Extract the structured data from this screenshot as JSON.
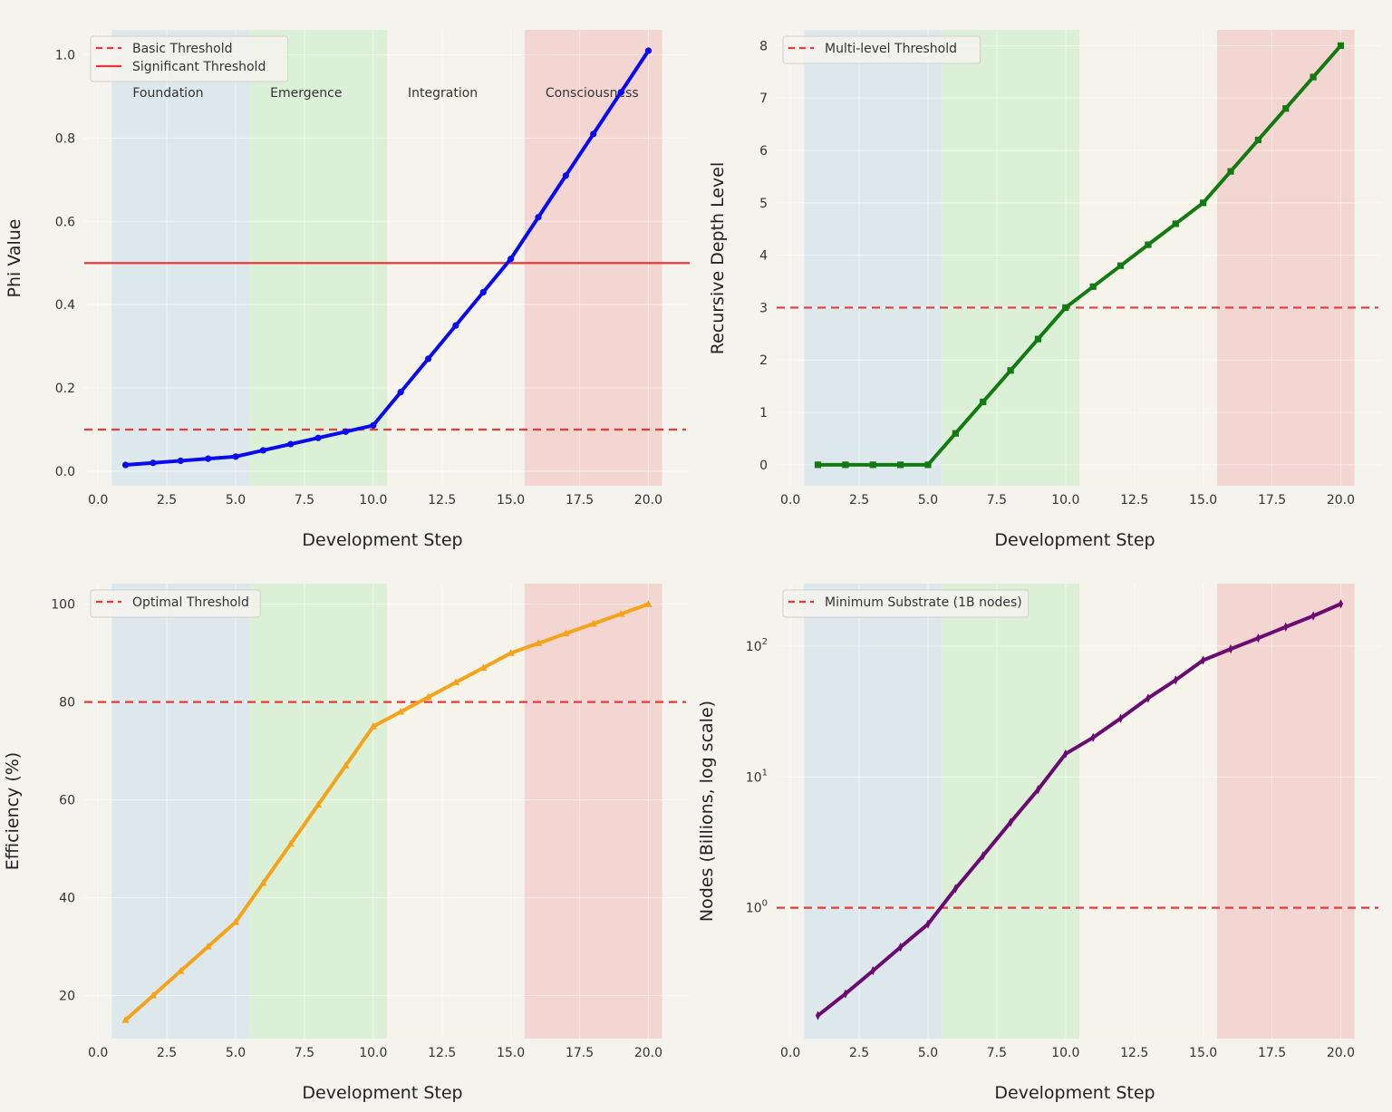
{
  "chart_data": [
    {
      "type": "line",
      "xlabel": "Development Step",
      "ylabel": "Phi Value",
      "xlim": [
        -0.5,
        21.5
      ],
      "ylim": [
        -0.035,
        1.06
      ],
      "yscale": "linear",
      "xticks": [
        "0.0",
        "2.5",
        "5.0",
        "7.5",
        "10.0",
        "12.5",
        "15.0",
        "17.5",
        "20.0"
      ],
      "yticks": [
        "0.0",
        "0.2",
        "0.4",
        "0.6",
        "0.8",
        "1.0"
      ],
      "legend_position": "top-left",
      "grid": true,
      "phases": [
        {
          "label": "Foundation",
          "start": 0.5,
          "end": 5.5,
          "color": "#dde8ec"
        },
        {
          "label": "Emergence",
          "start": 5.5,
          "end": 10.5,
          "color": "#dcf0d8"
        },
        {
          "label": "Integration",
          "start": 10.5,
          "end": 15.5,
          "color": "#f6f4ea"
        },
        {
          "label": "Consciousness",
          "start": 15.5,
          "end": 20.5,
          "color": "#f3d6d2"
        }
      ],
      "thresholds": [
        {
          "name": "Basic Threshold",
          "value": 0.1,
          "style": "dashed",
          "color": "#e83a3a"
        },
        {
          "name": "Significant Threshold",
          "value": 0.5,
          "style": "solid",
          "color": "#e83a3a"
        }
      ],
      "series": [
        {
          "color": "#0a0af0",
          "marker": "circle",
          "x": [
            1,
            2,
            3,
            4,
            5,
            6,
            7,
            8,
            9,
            10,
            11,
            12,
            13,
            14,
            15,
            16,
            17,
            18,
            19,
            20
          ],
          "values": [
            0.015,
            0.02,
            0.025,
            0.03,
            0.035,
            0.05,
            0.065,
            0.08,
            0.095,
            0.11,
            0.19,
            0.27,
            0.35,
            0.43,
            0.51,
            0.61,
            0.71,
            0.81,
            0.91,
            1.01
          ]
        }
      ]
    },
    {
      "type": "line",
      "xlabel": "Development Step",
      "ylabel": "Recursive Depth Level",
      "xlim": [
        -0.5,
        21.5
      ],
      "ylim": [
        -0.4,
        8.3
      ],
      "yscale": "linear",
      "xticks": [
        "0.0",
        "2.5",
        "5.0",
        "7.5",
        "10.0",
        "12.5",
        "15.0",
        "17.5",
        "20.0"
      ],
      "yticks": [
        "0",
        "1",
        "2",
        "3",
        "4",
        "5",
        "6",
        "7",
        "8"
      ],
      "legend_position": "top-left",
      "grid": true,
      "phases": [
        {
          "start": 0.5,
          "end": 5.5,
          "color": "#dde8ec"
        },
        {
          "start": 5.5,
          "end": 10.5,
          "color": "#dcf0d8"
        },
        {
          "start": 10.5,
          "end": 15.5,
          "color": "#f6f4ea"
        },
        {
          "start": 15.5,
          "end": 20.5,
          "color": "#f3d6d2"
        }
      ],
      "thresholds": [
        {
          "name": "Multi-level Threshold",
          "value": 3,
          "style": "dashed",
          "color": "#e83a3a"
        }
      ],
      "series": [
        {
          "color": "#117a11",
          "marker": "square",
          "x": [
            1,
            2,
            3,
            4,
            5,
            6,
            7,
            8,
            9,
            10,
            11,
            12,
            13,
            14,
            15,
            16,
            17,
            18,
            19,
            20
          ],
          "values": [
            0,
            0,
            0,
            0,
            0,
            0.6,
            1.2,
            1.8,
            2.4,
            3.0,
            3.4,
            3.8,
            4.2,
            4.6,
            5.0,
            5.6,
            6.2,
            6.8,
            7.4,
            8.0
          ]
        }
      ]
    },
    {
      "type": "line",
      "xlabel": "Development Step",
      "ylabel": "Efficiency (%)",
      "xlim": [
        -0.5,
        21.5
      ],
      "ylim": [
        11.2,
        104.2
      ],
      "yscale": "linear",
      "xticks": [
        "0.0",
        "2.5",
        "5.0",
        "7.5",
        "10.0",
        "12.5",
        "15.0",
        "17.5",
        "20.0"
      ],
      "yticks": [
        "20",
        "40",
        "60",
        "80",
        "100"
      ],
      "legend_position": "top-left",
      "grid": true,
      "phases": [
        {
          "start": 0.5,
          "end": 5.5,
          "color": "#dde8ec"
        },
        {
          "start": 5.5,
          "end": 10.5,
          "color": "#dcf0d8"
        },
        {
          "start": 10.5,
          "end": 15.5,
          "color": "#f6f4ea"
        },
        {
          "start": 15.5,
          "end": 20.5,
          "color": "#f3d6d2"
        }
      ],
      "thresholds": [
        {
          "name": "Optimal Threshold",
          "value": 80,
          "style": "dashed",
          "color": "#e83a3a"
        }
      ],
      "series": [
        {
          "color": "#f5a31a",
          "marker": "triangle",
          "x": [
            1,
            2,
            3,
            4,
            5,
            6,
            7,
            8,
            9,
            10,
            11,
            12,
            13,
            14,
            15,
            16,
            17,
            18,
            19,
            20
          ],
          "values": [
            15,
            20,
            25,
            30,
            35,
            43,
            51,
            59,
            67,
            75,
            78,
            81,
            84,
            87,
            90,
            92,
            94,
            96,
            98,
            100
          ]
        }
      ]
    },
    {
      "type": "line",
      "xlabel": "Development Step",
      "ylabel": "Nodes (Billions, log scale)",
      "xlim": [
        -0.5,
        21.5
      ],
      "ylim": [
        0.1,
        300
      ],
      "yscale": "log",
      "xticks": [
        "0.0",
        "2.5",
        "5.0",
        "7.5",
        "10.0",
        "12.5",
        "15.0",
        "17.5",
        "20.0"
      ],
      "yticks": [
        {
          "base": "10",
          "exp": "0"
        },
        {
          "base": "10",
          "exp": "1"
        },
        {
          "base": "10",
          "exp": "2"
        }
      ],
      "legend_position": "top-left",
      "grid": true,
      "phases": [
        {
          "start": 0.5,
          "end": 5.5,
          "color": "#dde8ec"
        },
        {
          "start": 5.5,
          "end": 10.5,
          "color": "#dcf0d8"
        },
        {
          "start": 10.5,
          "end": 15.5,
          "color": "#f6f4ea"
        },
        {
          "start": 15.5,
          "end": 20.5,
          "color": "#f3d6d2"
        }
      ],
      "thresholds": [
        {
          "name": "Minimum Substrate (1B nodes)",
          "value": 1,
          "style": "dashed",
          "color": "#e83a3a"
        }
      ],
      "series": [
        {
          "color": "#6b0a70",
          "marker": "diamond",
          "x": [
            1,
            2,
            3,
            4,
            5,
            6,
            7,
            8,
            9,
            10,
            11,
            12,
            13,
            14,
            15,
            16,
            17,
            18,
            19,
            20
          ],
          "values": [
            0.15,
            0.22,
            0.33,
            0.5,
            0.75,
            1.4,
            2.5,
            4.5,
            8,
            15,
            20,
            28,
            40,
            55,
            78,
            95,
            115,
            140,
            170,
            210
          ]
        }
      ]
    }
  ]
}
